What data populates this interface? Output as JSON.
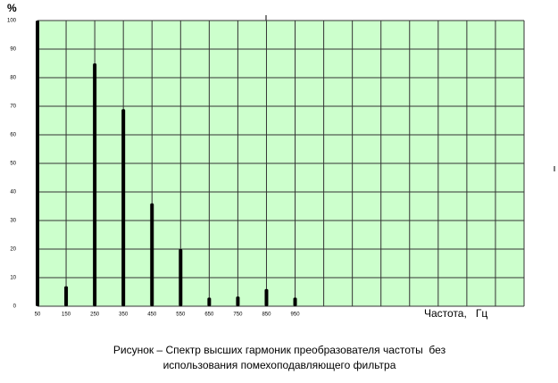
{
  "chart_data": {
    "type": "bar",
    "y_label": "%",
    "x_label": "Частота,   Гц",
    "caption": [
      "Рисунок – Спектр высших гармоник преобразователя частоты  без",
      "использования помехоподавляющего фильтра"
    ],
    "x": [
      50,
      150,
      250,
      350,
      450,
      550,
      650,
      750,
      850,
      950
    ],
    "values": [
      100,
      7,
      85,
      69,
      36,
      20,
      3,
      3.4,
      6,
      3
    ],
    "color": "#000000",
    "background": "#ccffcc",
    "xlim": [
      50,
      1750
    ],
    "xticks": [
      50,
      150,
      250,
      350,
      450,
      550,
      650,
      750,
      850,
      950
    ],
    "xgrid": [
      50,
      150,
      250,
      350,
      450,
      550,
      650,
      750,
      850,
      950,
      1050,
      1150,
      1250,
      1350,
      1450,
      1550,
      1650,
      1750
    ],
    "ylim": [
      0,
      100
    ],
    "yticks": [
      0,
      10,
      20,
      30,
      40,
      50,
      60,
      70,
      80,
      90,
      100
    ],
    "grid": true
  }
}
